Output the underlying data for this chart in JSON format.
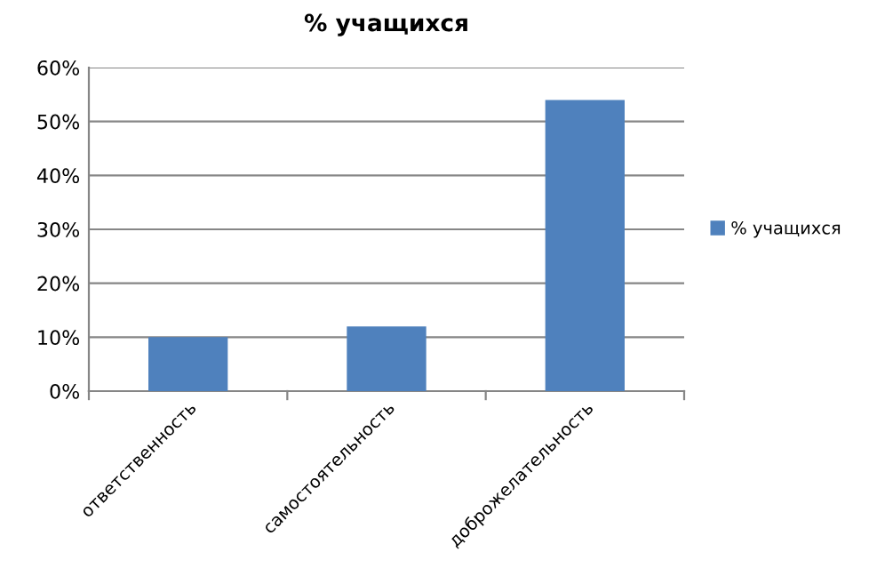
{
  "chart_data": {
    "type": "bar",
    "title": "% учащихся",
    "categories": [
      "ответственность",
      "самостоятельность",
      "доброжелательность"
    ],
    "series": [
      {
        "name": "% учащихся",
        "color": "#4f81bd",
        "values": [
          10,
          12,
          54
        ]
      }
    ],
    "ylim": [
      0,
      60
    ],
    "yticks": [
      {
        "value": 0,
        "label": "0%"
      },
      {
        "value": 10,
        "label": "10%"
      },
      {
        "value": 20,
        "label": "20%"
      },
      {
        "value": 30,
        "label": "30%"
      },
      {
        "value": 40,
        "label": "40%"
      },
      {
        "value": 50,
        "label": "50%"
      },
      {
        "value": 60,
        "label": "60%"
      }
    ],
    "grid": "y",
    "legend": "right"
  }
}
